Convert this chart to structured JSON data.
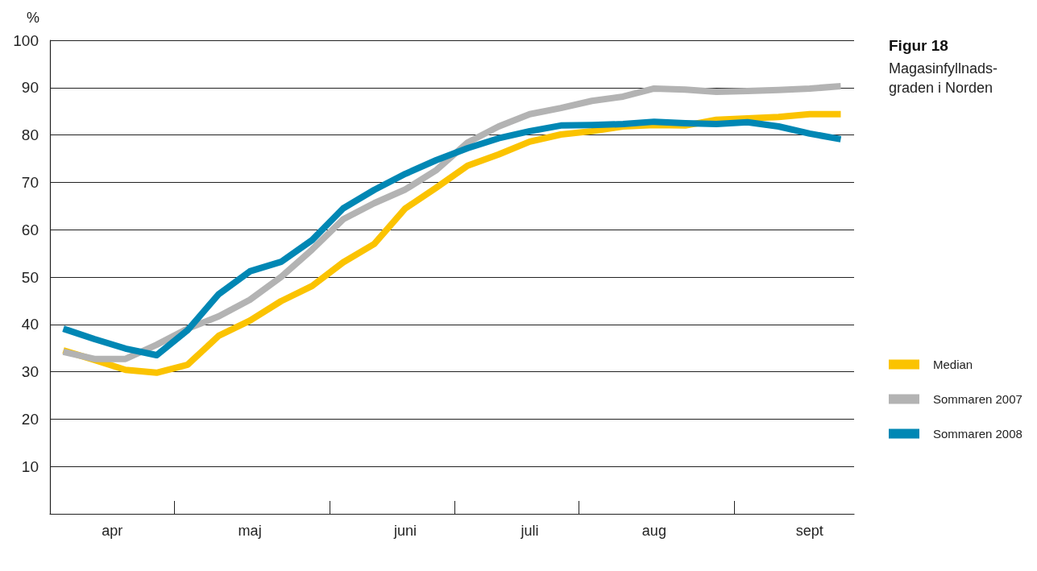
{
  "chart_data": {
    "type": "line",
    "title": "Figur 18",
    "subtitle": "Magasinfyllnads-\ngraden i Norden",
    "ylabel": "%",
    "x": [
      "--04-06",
      "--04-13",
      "--04-20",
      "--04-27",
      "--05-04",
      "--05-11",
      "--05-18",
      "--05-25",
      "--06-01",
      "--06-08",
      "--06-15",
      "--06-22",
      "--06-29",
      "--07-06",
      "--07-13",
      "--07-20",
      "--07-27",
      "--08-03",
      "--08-10",
      "--08-17",
      "--08-24",
      "--08-31",
      "--09-07",
      "--09-14",
      "--09-21",
      "--09-28"
    ],
    "xlim": [
      "--04-03",
      "--10-01"
    ],
    "xticks": [
      {
        "value": "--04-17",
        "label": "apr"
      },
      {
        "value": "--05-18",
        "label": "maj"
      },
      {
        "value": "--06-22",
        "label": "juni"
      },
      {
        "value": "--07-20",
        "label": "juli"
      },
      {
        "value": "--08-17",
        "label": "aug"
      },
      {
        "value": "--09-21",
        "label": "sept"
      },
      {
        "value": "--05-01",
        "label": null
      },
      {
        "value": "--06-05",
        "label": null
      },
      {
        "value": "--07-03",
        "label": null
      },
      {
        "value": "--07-31",
        "label": null
      },
      {
        "value": "--09-04",
        "label": null
      }
    ],
    "ylim": [
      0,
      100
    ],
    "yticks": [
      10,
      20,
      30,
      40,
      50,
      60,
      70,
      80,
      90,
      100
    ],
    "grid": "y",
    "legend": "right",
    "marker": "none",
    "line_style": "solid",
    "series": [
      {
        "name": "Median",
        "color": "#fbc300",
        "values": [
          34.5,
          32.5,
          30.4,
          29.8,
          31.5,
          37.6,
          40.8,
          44.9,
          48.1,
          53.1,
          57.0,
          64.5,
          68.9,
          73.5,
          75.9,
          78.6,
          80.1,
          80.8,
          81.8,
          82.1,
          82.0,
          83.2,
          83.5,
          83.8,
          84.4,
          84.4
        ]
      },
      {
        "name": "Sommaren 2007",
        "color": "#b3b3b3",
        "values": [
          34.2,
          32.7,
          32.7,
          35.7,
          39.1,
          41.7,
          45.2,
          50.0,
          55.8,
          62.2,
          65.6,
          68.5,
          72.6,
          78.4,
          81.8,
          84.4,
          85.7,
          87.2,
          88.1,
          89.8,
          89.6,
          89.1,
          89.3,
          89.5,
          89.8,
          90.3
        ]
      },
      {
        "name": "Sommaren 2008",
        "color": "#0087b4",
        "values": [
          39.1,
          36.9,
          34.9,
          33.5,
          38.8,
          46.4,
          51.2,
          53.2,
          57.8,
          64.5,
          68.4,
          71.8,
          74.7,
          77.2,
          79.3,
          80.8,
          82.0,
          82.1,
          82.3,
          82.8,
          82.5,
          82.3,
          82.7,
          81.8,
          80.3,
          79.1
        ]
      }
    ]
  }
}
